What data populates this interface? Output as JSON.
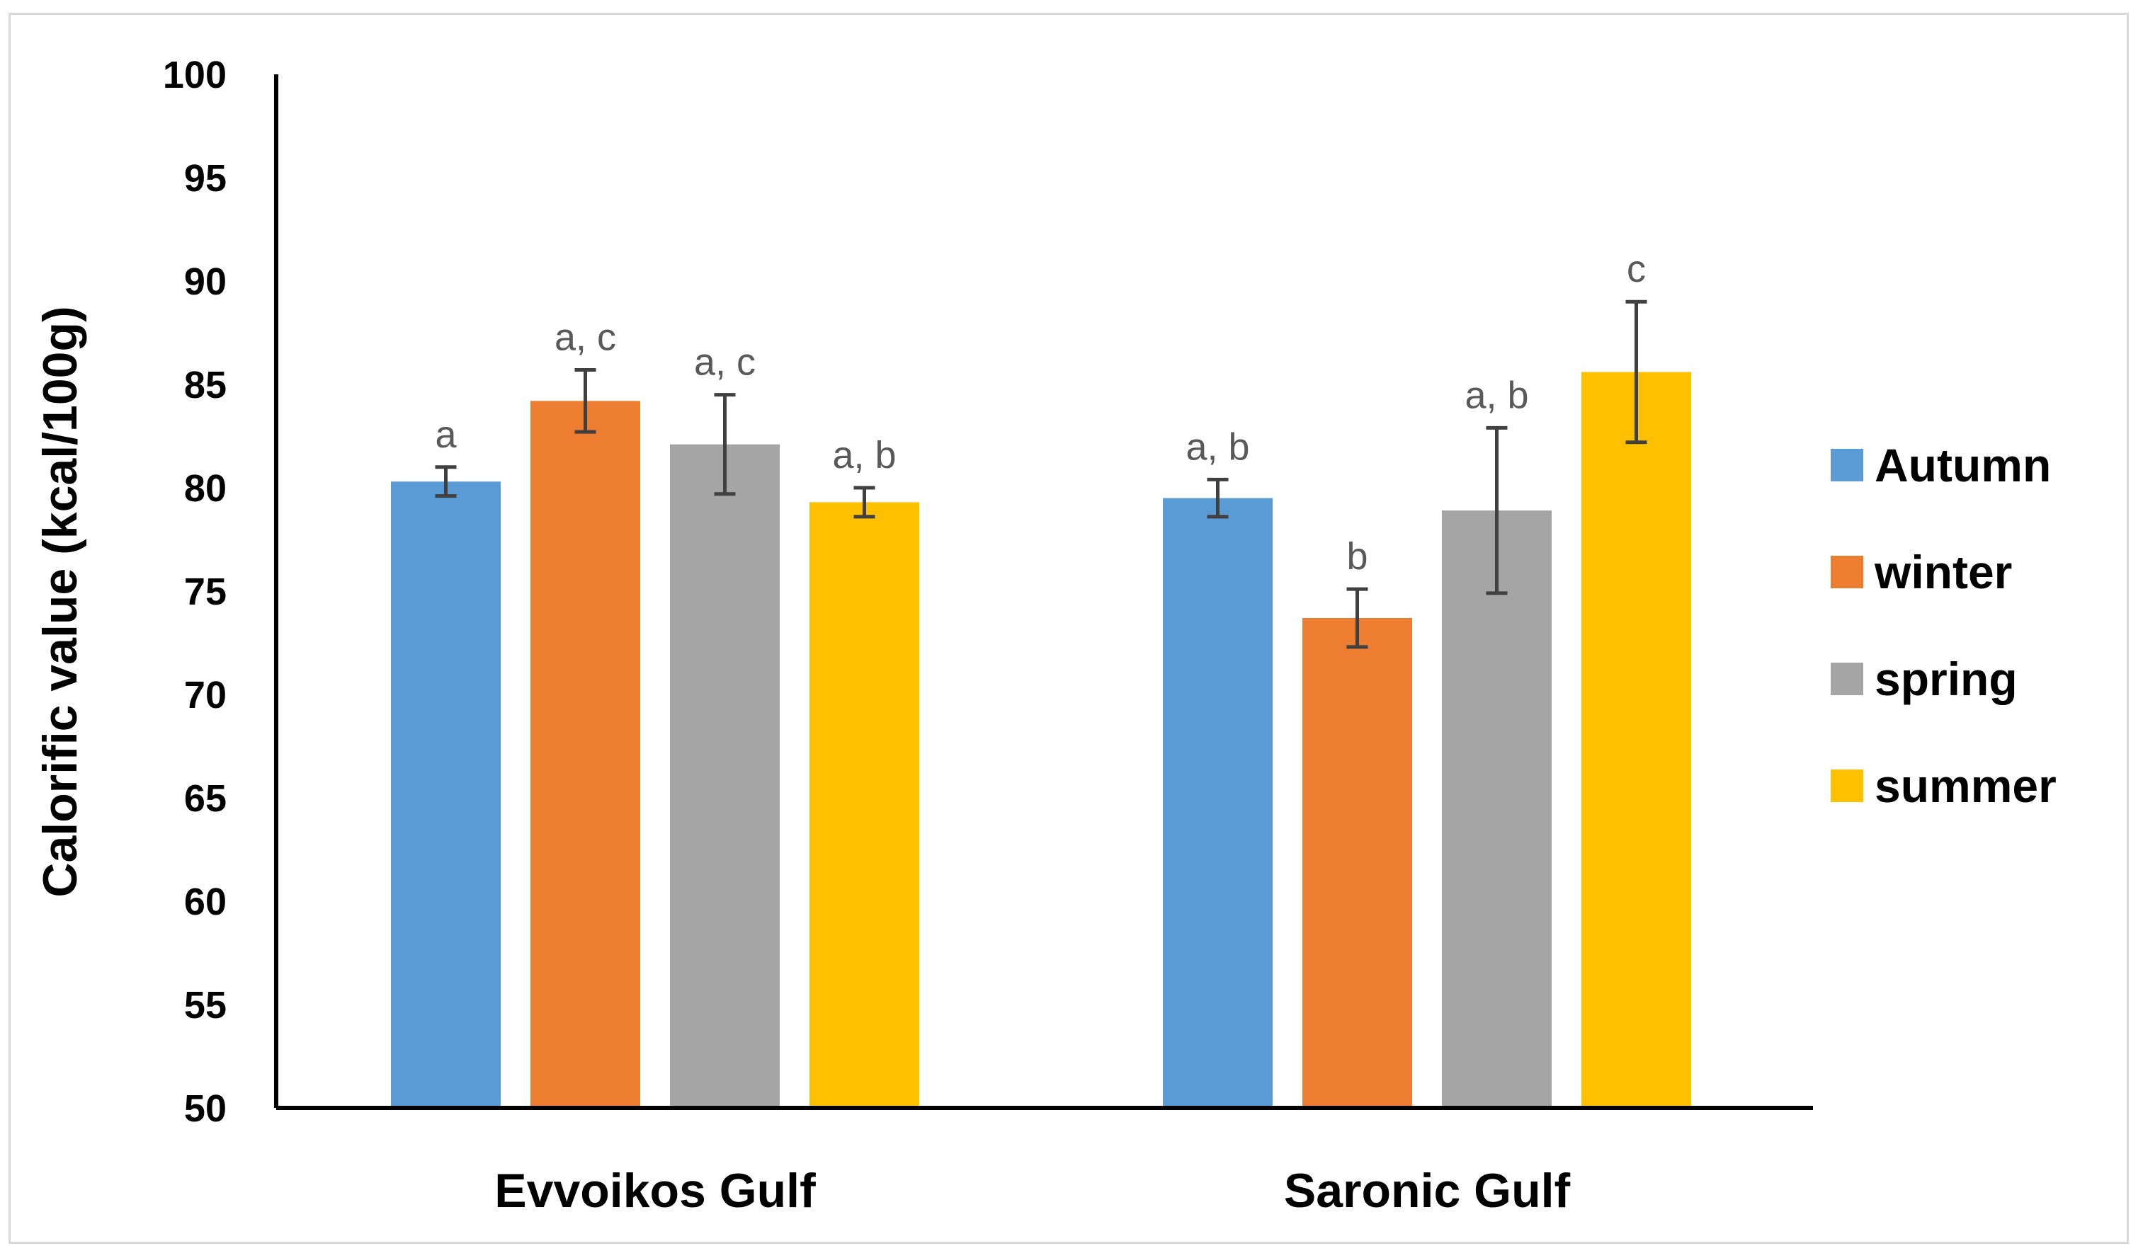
{
  "chart_data": {
    "type": "bar",
    "title": "",
    "xlabel": "",
    "ylabel": "Calorific value (kcal/100g)",
    "ylim": [
      50,
      100
    ],
    "yticks": [
      50,
      55,
      60,
      65,
      70,
      75,
      80,
      85,
      90,
      95,
      100
    ],
    "grid": false,
    "legend_position": "right",
    "categories": [
      "Evvoikos Gulf",
      "Saronic Gulf"
    ],
    "series": [
      {
        "name": "Autumn",
        "color": "#5b9bd5",
        "values": [
          80.3,
          79.5
        ],
        "errors": [
          0.7,
          0.9
        ],
        "labels": [
          "a",
          "a, b"
        ]
      },
      {
        "name": "winter",
        "color": "#ed7d31",
        "values": [
          84.2,
          73.7
        ],
        "errors": [
          1.5,
          1.4
        ],
        "labels": [
          "a, c",
          "b"
        ]
      },
      {
        "name": "spring",
        "color": "#a5a5a5",
        "values": [
          82.1,
          78.9
        ],
        "errors": [
          2.4,
          4.0
        ],
        "labels": [
          "a, c",
          "a, b"
        ]
      },
      {
        "name": "summer",
        "color": "#ffc000",
        "values": [
          79.3,
          85.6
        ],
        "errors": [
          0.7,
          3.4
        ],
        "labels": [
          "a, b",
          "c"
        ]
      }
    ]
  }
}
